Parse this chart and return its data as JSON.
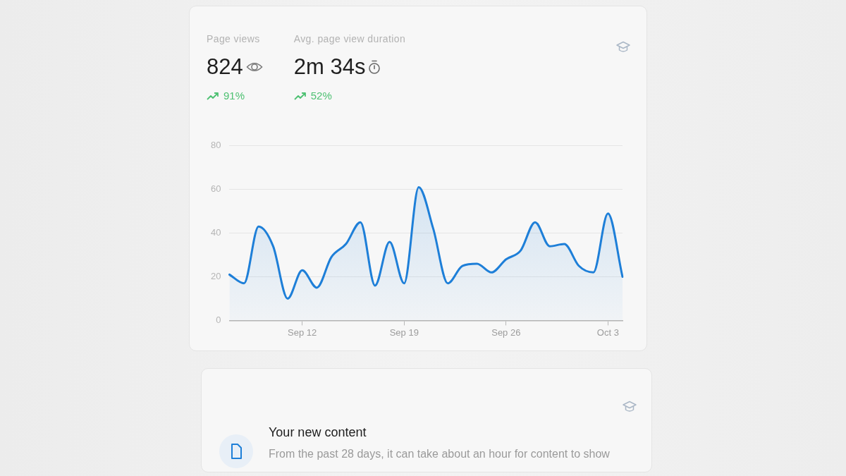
{
  "chart_data": [
    {
      "type": "area",
      "annotations": [
        "Page views",
        "824",
        "91%",
        "Avg. page view duration",
        "2m 34s",
        "52%"
      ],
      "categories": [
        null,
        null,
        null,
        null,
        null,
        "Sep 12",
        null,
        null,
        null,
        null,
        null,
        null,
        "Sep 19",
        null,
        null,
        null,
        null,
        null,
        null,
        "Sep 26",
        null,
        null,
        null,
        null,
        null,
        null,
        "Oct 3",
        null
      ],
      "series": [
        {
          "color": "#1e7fd8",
          "values": [
            21,
            17,
            43,
            34,
            10,
            23,
            15,
            29,
            35,
            45,
            16,
            36,
            17,
            61,
            42,
            17,
            25,
            26,
            22,
            28,
            32,
            45,
            34,
            35,
            25,
            22,
            49,
            20
          ]
        }
      ],
      "ylim": [
        0,
        80
      ],
      "yticks": [
        0,
        20,
        40,
        60,
        80
      ],
      "grid": "y"
    },
    {
      "type": "other",
      "title": "Your new content",
      "subtitle": "From the past 28 days, it can take about an hour for content to show"
    }
  ]
}
